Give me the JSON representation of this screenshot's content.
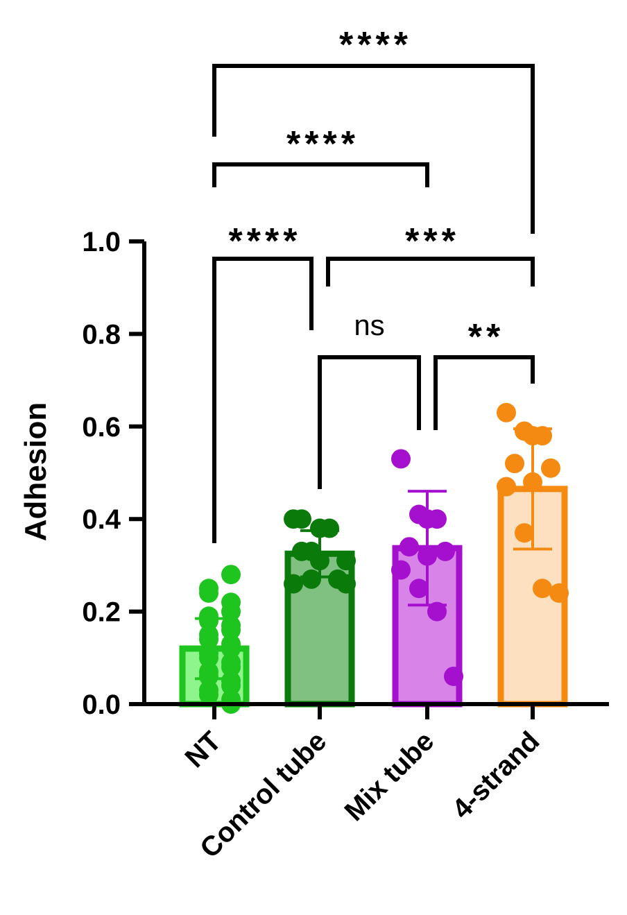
{
  "chart_data": {
    "type": "bar",
    "ylabel": "Adhesion",
    "xlabel": "",
    "ylim": [
      0,
      1.0
    ],
    "yticks": [
      0.0,
      0.2,
      0.4,
      0.6,
      0.8,
      1.0
    ],
    "ytick_labels": [
      "0.0",
      "0.2",
      "0.4",
      "0.6",
      "0.8",
      "1.0"
    ],
    "grid": false,
    "categories": [
      "NT",
      "Control tube",
      "Mix tube",
      "4-strand"
    ],
    "series": [
      {
        "values": [
          0.12,
          0.325,
          0.337,
          0.465
        ],
        "error": [
          0.065,
          0.05,
          0.123,
          0.13
        ],
        "fill_colors": [
          "#8ef58c",
          "#80c080",
          "#d783e8",
          "#fde0c0"
        ],
        "edge_colors": [
          "#1ec51e",
          "#0a7a0a",
          "#a510cf",
          "#f58a12"
        ],
        "points": [
          [
            0.28,
            0.25,
            0.24,
            0.22,
            0.2,
            0.19,
            0.18,
            0.17,
            0.16,
            0.15,
            0.14,
            0.13,
            0.12,
            0.11,
            0.1,
            0.09,
            0.08,
            0.07,
            0.06,
            0.05,
            0.04,
            0.03,
            0.02,
            0.01,
            0.0
          ],
          [
            0.4,
            0.4,
            0.38,
            0.38,
            0.33,
            0.33,
            0.31,
            0.31,
            0.27,
            0.27,
            0.26,
            0.26
          ],
          [
            0.53,
            0.41,
            0.4,
            0.4,
            0.34,
            0.33,
            0.32,
            0.29,
            0.25,
            0.2,
            0.06
          ],
          [
            0.63,
            0.59,
            0.58,
            0.58,
            0.52,
            0.51,
            0.48,
            0.47,
            0.37,
            0.25,
            0.24
          ]
        ]
      }
    ],
    "comparisons": [
      {
        "from": 0,
        "to": 1,
        "label": "****"
      },
      {
        "from": 1,
        "to": 3,
        "label": "***"
      },
      {
        "from": 1,
        "to": 2,
        "label": "ns"
      },
      {
        "from": 2,
        "to": 3,
        "label": "**"
      },
      {
        "from": 0,
        "to": 2,
        "label": "****"
      },
      {
        "from": 0,
        "to": 3,
        "label": "****"
      }
    ]
  }
}
